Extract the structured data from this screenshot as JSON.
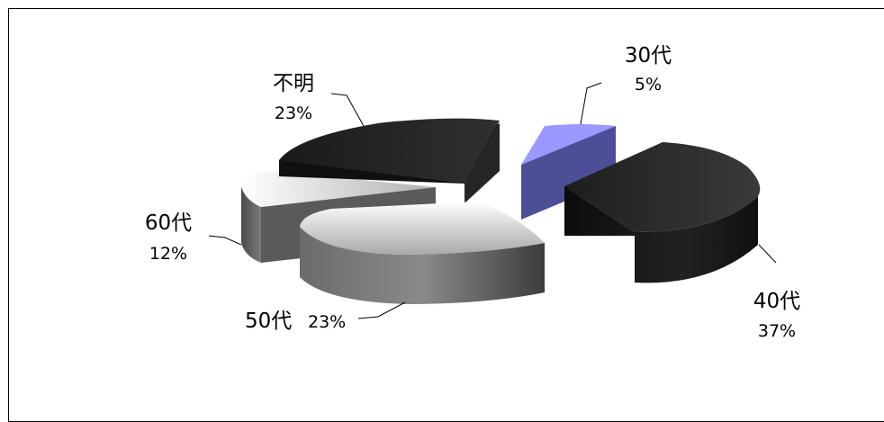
{
  "chart_data": {
    "type": "pie",
    "style": "3d-exploded",
    "categories": [
      "30代",
      "40代",
      "50代",
      "60代",
      "不明"
    ],
    "values": [
      5,
      37,
      23,
      12,
      23
    ],
    "unit": "%",
    "labels": [
      {
        "name": "30代",
        "value": "5%"
      },
      {
        "name": "40代",
        "value": "37%"
      },
      {
        "name": "50代",
        "value": "23%"
      },
      {
        "name": "60代",
        "value": "12%"
      },
      {
        "name": "不明",
        "value": "23%"
      }
    ],
    "colors": {
      "30代": "#9999ff",
      "40代": "#2b2b2b",
      "50代": "#bfbfbf",
      "60代": "#a6a6a6",
      "不明": "#1e1e1e"
    },
    "legend": "none"
  }
}
